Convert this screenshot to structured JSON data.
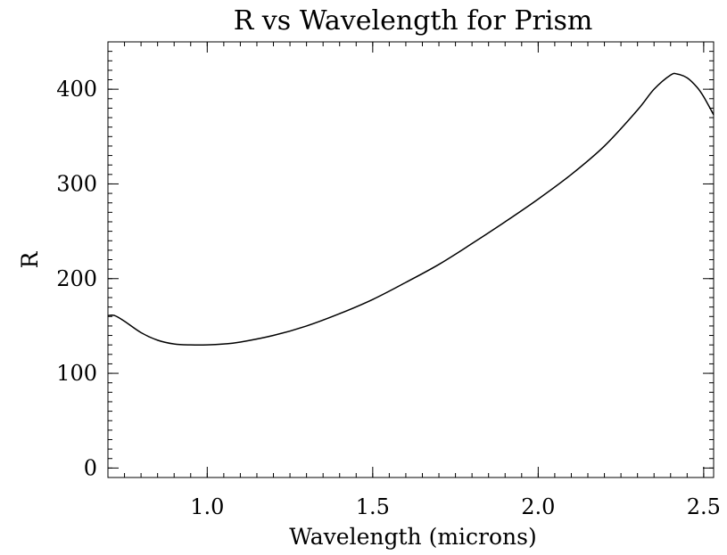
{
  "chart_data": {
    "type": "line",
    "title": "R vs Wavelength for Prism",
    "xlabel": "Wavelength (microns)",
    "ylabel": "R",
    "xlim": [
      0.7,
      2.53
    ],
    "ylim": [
      -10,
      450
    ],
    "x_ticks": [
      1.0,
      1.5,
      2.0,
      2.5
    ],
    "x_tick_labels": [
      "1.0",
      "1.5",
      "2.0",
      "2.5"
    ],
    "y_ticks": [
      0,
      100,
      200,
      300,
      400
    ],
    "y_tick_labels": [
      "0",
      "100",
      "200",
      "300",
      "400"
    ],
    "x_minor_step": 0.05,
    "y_minor_step": 10,
    "grid": false,
    "line_color": "#000000",
    "series": [
      {
        "x": [
          0.7,
          0.72,
          0.75,
          0.8,
          0.85,
          0.9,
          0.95,
          1.0,
          1.05,
          1.1,
          1.2,
          1.3,
          1.4,
          1.5,
          1.6,
          1.7,
          1.8,
          1.9,
          2.0,
          2.1,
          2.2,
          2.3,
          2.35,
          2.4,
          2.42,
          2.45,
          2.48,
          2.5,
          2.53
        ],
        "y": [
          161,
          161,
          155,
          143,
          135,
          131,
          130,
          130,
          131,
          133,
          140,
          150,
          163,
          178,
          196,
          215,
          237,
          260,
          284,
          310,
          340,
          378,
          400,
          415,
          416,
          412,
          402,
          392,
          373
        ]
      }
    ]
  }
}
